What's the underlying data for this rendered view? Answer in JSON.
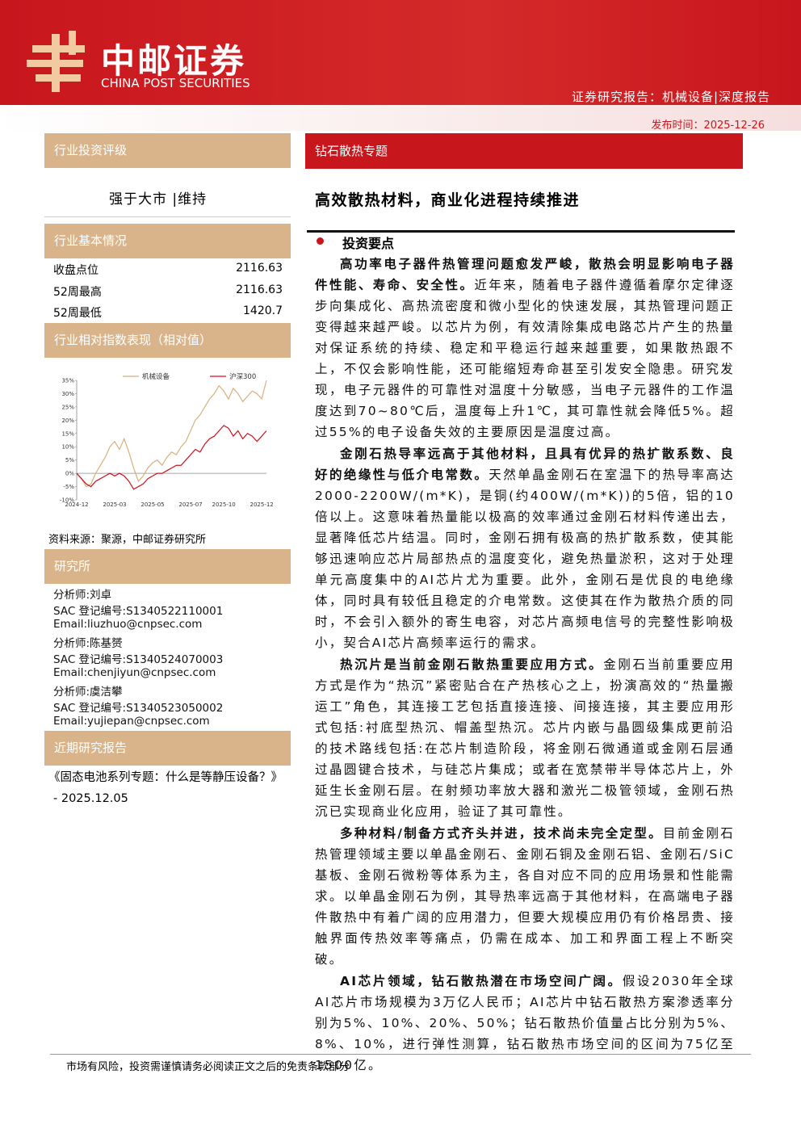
{
  "header": {
    "company": "中邮证券",
    "company_en": "CHINA POST SECURITIES",
    "report_type": "证券研究报告：机械设备|深度报告",
    "date": "发布时间：2025-12-26"
  },
  "left": {
    "rating_title": "行业投资评级",
    "rating": "强于大市 |维持",
    "basic_title": "行业基本情况",
    "basic_rows": [
      [
        "收盘点位",
        "2116.63"
      ],
      [
        "52周最高",
        "2116.63"
      ],
      [
        "52周最低",
        "1420.7"
      ]
    ],
    "index_title": "行业相对指数表现（相对值）",
    "source": "资料来源：聚源，中邮证券研究所",
    "institute_title": "研究所",
    "analysts": [
      "分析师:刘卓",
      "SAC 登记编号:S1340522110001",
      "Email:liuzhuo@cnpsec.com",
      "分析师:陈基赟",
      "SAC 登记编号:S1340524070003",
      "Email:chenjiyun@cnpsec.com",
      "分析师:虞洁攀",
      "SAC 登记编号:S1340523050002",
      "Email:yujiepan@cnpsec.com"
    ],
    "recent_title": "近期研究报告",
    "recent": "《固态电池系列专题：什么是等静压设备？》 - 2025.12.05"
  },
  "chart_data": {
    "type": "line",
    "categories": [
      "2024-12",
      null,
      null,
      null,
      null,
      null,
      null,
      null,
      "2025-03",
      null,
      null,
      null,
      null,
      null,
      null,
      null,
      "2025-05",
      null,
      null,
      null,
      null,
      null,
      null,
      null,
      "2025-07",
      null,
      null,
      null,
      null,
      null,
      null,
      "2025-10",
      null,
      null,
      null,
      null,
      null,
      null,
      null,
      "2025-12",
      null
    ],
    "series": [
      {
        "name": "机械设备",
        "color": "#d8b07a",
        "values": [
          0,
          -2,
          -5,
          -4,
          0,
          3,
          6,
          10,
          12,
          9,
          13,
          8,
          2,
          -3,
          -1,
          2,
          4,
          5,
          3,
          6,
          8,
          7,
          10,
          12,
          16,
          20,
          22,
          25,
          28,
          30,
          33,
          31,
          28,
          32,
          30,
          27,
          29,
          31,
          30,
          28,
          35
        ]
      },
      {
        "name": "沪深300",
        "color": "#d0101b",
        "values": [
          0,
          -2,
          -4,
          -5,
          -3,
          -2,
          -1,
          0,
          -1,
          0,
          -1,
          -3,
          -6,
          -5,
          -4,
          -2,
          -1,
          0,
          0,
          1,
          2,
          3,
          3,
          5,
          7,
          9,
          8,
          11,
          13,
          14,
          16,
          18,
          17,
          14,
          16,
          13,
          15,
          14,
          12,
          14,
          16
        ]
      }
    ],
    "ylim": [
      -10,
      35
    ],
    "yticks": [
      {
        "value": -10,
        "label": "-10%"
      },
      {
        "value": -5,
        "label": "-5%"
      },
      {
        "value": 0,
        "label": "0%"
      },
      {
        "value": 5,
        "label": "5%"
      },
      {
        "value": 10,
        "label": "10%"
      },
      {
        "value": 15,
        "label": "15%"
      },
      {
        "value": 20,
        "label": "20%"
      },
      {
        "value": 25,
        "label": "25%"
      },
      {
        "value": 30,
        "label": "30%"
      },
      {
        "value": 35,
        "label": "35%"
      }
    ]
  },
  "main": {
    "topic": "钻石散热专题",
    "title": "高效散热材料，商业化进程持续推进",
    "section": "投资要点",
    "paragraphs": [
      {
        "lead": "高功率电子器件热管理问题愈发严峻，散热会明显影响电子器件性能、寿命、安全性。",
        "body": "近年来，随着电子器件遵循着摩尔定律逐步向集成化、高热流密度和微小型化的快速发展，其热管理问题正变得越来越严峻。以芯片为例，有效清除集成电路芯片产生的热量对保证系统的持续、稳定和平稳运行越来越重要，如果散热跟不上，不仅会影响性能，还可能缩短寿命甚至引发安全隐患。研究发现，电子元器件的可靠性对温度十分敏感，当电子元器件的工作温度达到70~80℃后，温度每上升1℃，其可靠性就会降低5%。超过55%的电子设备失效的主要原因是温度过高。"
      },
      {
        "lead": "金刚石热导率远高于其他材料，且具有优异的热扩散系数、良好的绝缘性与低介电常数。",
        "body": "天然单晶金刚石在室温下的热导率高达2000-2200W/(m*K)，是铜(约400W/(m*K))的5倍，铝的10倍以上。这意味着热量能以极高的效率通过金刚石材料传递出去，显著降低芯片结温。同时，金刚石拥有极高的热扩散系数，使其能够迅速响应芯片局部热点的温度变化，避免热量淤积，这对于处理单元高度集中的AI芯片尤为重要。此外，金刚石是优良的电绝缘体，同时具有较低且稳定的介电常数。这使其在作为散热介质的同时，不会引入额外的寄生电容，对芯片高频电信号的完整性影响极小，契合AI芯片高频率运行的需求。"
      },
      {
        "lead": "热沉片是当前金刚石散热重要应用方式。",
        "body": "金刚石当前重要应用方式是作为“热沉”紧密贴合在产热核心之上，扮演高效的“热量搬运工”角色，其连接工艺包括直接连接、间接连接，其主要应用形式包括:衬底型热沉、帽盖型热沉。芯片内嵌与晶圆级集成更前沿的技术路线包括:在芯片制造阶段，将金刚石微通道或金刚石层通过晶圆键合技术，与硅芯片集成；或者在宽禁带半导体芯片上，外延生长金刚石层。在射频功率放大器和激光二极管领域，金刚石热沉已实现商业化应用，验证了其可靠性。"
      },
      {
        "lead": "多种材料/制备方式齐头并进，技术尚未完全定型。",
        "body": "目前金刚石热管理领域主要以单晶金刚石、金刚石铜及金刚石铝、金刚石/SiC基板、金刚石微粉等体系为主，各自对应不同的应用场景和性能需求。以单晶金刚石为例，其导热率远高于其他材料，在高端电子器件散热中有着广阔的应用潜力，但要大规模应用仍有价格昂贵、接触界面传热效率等痛点，仍需在成本、加工和界面工程上不断突破。"
      },
      {
        "lead": "AI芯片领域，钻石散热潜在市场空间广阔。",
        "body": "假设2030年全球AI芯片市场规模为3万亿人民币；AI芯片中钻石散热方案渗透率分别为5%、10%、20%、50%；钻石散热价值量占比分别为5%、8%、10%，进行弹性测算，钻石散热市场空间的区间为75亿至1500亿。"
      }
    ]
  },
  "footer": "市场有风险，投资需谨慎请务必阅读正文之后的免责条款部分"
}
